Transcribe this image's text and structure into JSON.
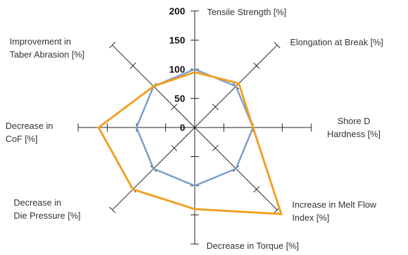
{
  "chart_data": {
    "type": "radar",
    "axes": [
      {
        "label_lines": [
          "Tensile Strength [%]"
        ]
      },
      {
        "label_lines": [
          "Elongation at Break [%]"
        ]
      },
      {
        "label_lines": [
          "Shore D",
          "Hardness [%]"
        ]
      },
      {
        "label_lines": [
          "Increase in Melt Flow",
          "Index [%]"
        ]
      },
      {
        "label_lines": [
          "Decrease in Torque [%]"
        ]
      },
      {
        "label_lines": [
          "Decrease in",
          "Die Pressure [%]"
        ]
      },
      {
        "label_lines": [
          "Decrease in",
          "CoF [%]"
        ]
      },
      {
        "label_lines": [
          "Improvement in",
          "Taber Abrasion [%]"
        ]
      }
    ],
    "tick_labels": [
      "0",
      "50",
      "100",
      "150",
      "200"
    ],
    "tick_values": [
      0,
      50,
      100,
      150,
      200
    ],
    "range": [
      0,
      200
    ],
    "series": [
      {
        "color": "#7b9bcf",
        "values": [
          100,
          100,
          100,
          100,
          100,
          100,
          100,
          100
        ]
      },
      {
        "color": "#f0a020",
        "values": [
          95,
          107,
          100,
          210,
          140,
          150,
          165,
          100
        ]
      }
    ]
  }
}
